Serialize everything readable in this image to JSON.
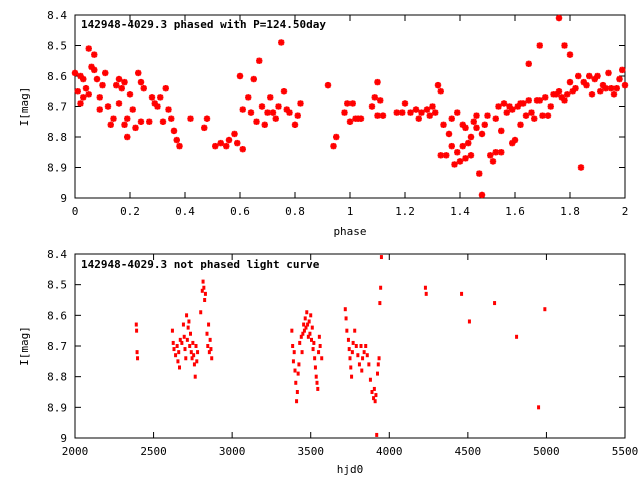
{
  "chart_data": [
    {
      "type": "scatter",
      "title": "142948-4029.3 phased with P=124.50day",
      "xlabel": "phase",
      "ylabel": "I[mag]",
      "xlim": [
        0,
        2
      ],
      "ylim": [
        8.4,
        9
      ],
      "y_inverted": true,
      "xticks": [
        "0",
        "0.2",
        "0.4",
        "0.6",
        "0.8",
        "1",
        "1.2",
        "1.4",
        "1.6",
        "1.8",
        "2"
      ],
      "xtick_values": [
        0,
        0.2,
        0.4,
        0.6,
        0.8,
        1.0,
        1.2,
        1.4,
        1.6,
        1.8,
        2.0
      ],
      "yticks": [
        "8.4",
        "8.5",
        "8.6",
        "8.7",
        "8.8",
        "8.9",
        "9"
      ],
      "ytick_values": [
        8.4,
        8.5,
        8.6,
        8.7,
        8.8,
        8.9,
        9.0
      ],
      "marker": "asterisk",
      "color": "#ff0000",
      "points": [
        [
          0.0,
          8.59
        ],
        [
          0.01,
          8.65
        ],
        [
          0.02,
          8.6
        ],
        [
          0.02,
          8.69
        ],
        [
          0.03,
          8.61
        ],
        [
          0.03,
          8.67
        ],
        [
          0.04,
          8.64
        ],
        [
          0.05,
          8.51
        ],
        [
          0.05,
          8.66
        ],
        [
          0.06,
          8.57
        ],
        [
          0.07,
          8.53
        ],
        [
          0.07,
          8.58
        ],
        [
          0.08,
          8.61
        ],
        [
          0.09,
          8.71
        ],
        [
          0.09,
          8.67
        ],
        [
          0.1,
          8.63
        ],
        [
          0.11,
          8.59
        ],
        [
          0.12,
          8.7
        ],
        [
          0.13,
          8.76
        ],
        [
          0.14,
          8.74
        ],
        [
          0.15,
          8.63
        ],
        [
          0.16,
          8.61
        ],
        [
          0.16,
          8.69
        ],
        [
          0.17,
          8.64
        ],
        [
          0.18,
          8.76
        ],
        [
          0.18,
          8.62
        ],
        [
          0.19,
          8.74
        ],
        [
          0.19,
          8.8
        ],
        [
          0.2,
          8.66
        ],
        [
          0.21,
          8.71
        ],
        [
          0.22,
          8.77
        ],
        [
          0.23,
          8.59
        ],
        [
          0.24,
          8.62
        ],
        [
          0.24,
          8.75
        ],
        [
          0.25,
          8.64
        ],
        [
          0.27,
          8.75
        ],
        [
          0.28,
          8.67
        ],
        [
          0.29,
          8.69
        ],
        [
          0.3,
          8.7
        ],
        [
          0.31,
          8.67
        ],
        [
          0.32,
          8.75
        ],
        [
          0.33,
          8.64
        ],
        [
          0.34,
          8.71
        ],
        [
          0.35,
          8.74
        ],
        [
          0.36,
          8.78
        ],
        [
          0.37,
          8.81
        ],
        [
          0.38,
          8.83
        ],
        [
          0.42,
          8.74
        ],
        [
          0.47,
          8.77
        ],
        [
          0.48,
          8.74
        ],
        [
          0.51,
          8.83
        ],
        [
          0.53,
          8.82
        ],
        [
          0.55,
          8.83
        ],
        [
          0.56,
          8.81
        ],
        [
          0.58,
          8.79
        ],
        [
          0.59,
          8.82
        ],
        [
          0.6,
          8.6
        ],
        [
          0.61,
          8.84
        ],
        [
          0.61,
          8.71
        ],
        [
          0.63,
          8.67
        ],
        [
          0.64,
          8.72
        ],
        [
          0.65,
          8.61
        ],
        [
          0.66,
          8.75
        ],
        [
          0.67,
          8.55
        ],
        [
          0.68,
          8.7
        ],
        [
          0.69,
          8.76
        ],
        [
          0.7,
          8.72
        ],
        [
          0.71,
          8.67
        ],
        [
          0.72,
          8.72
        ],
        [
          0.73,
          8.74
        ],
        [
          0.74,
          8.7
        ],
        [
          0.75,
          8.49
        ],
        [
          0.76,
          8.65
        ],
        [
          0.77,
          8.71
        ],
        [
          0.78,
          8.72
        ],
        [
          0.8,
          8.76
        ],
        [
          0.81,
          8.73
        ],
        [
          0.82,
          8.69
        ],
        [
          0.92,
          8.63
        ],
        [
          0.94,
          8.83
        ],
        [
          0.95,
          8.8
        ],
        [
          0.98,
          8.72
        ],
        [
          0.99,
          8.69
        ],
        [
          1.0,
          8.75
        ],
        [
          1.01,
          8.69
        ],
        [
          1.02,
          8.74
        ],
        [
          1.03,
          8.74
        ],
        [
          1.04,
          8.74
        ],
        [
          1.08,
          8.7
        ],
        [
          1.09,
          8.67
        ],
        [
          1.1,
          8.73
        ],
        [
          1.1,
          8.62
        ],
        [
          1.11,
          8.68
        ],
        [
          1.12,
          8.73
        ],
        [
          1.17,
          8.72
        ],
        [
          1.19,
          8.72
        ],
        [
          1.2,
          8.69
        ],
        [
          1.22,
          8.72
        ],
        [
          1.24,
          8.71
        ],
        [
          1.25,
          8.74
        ],
        [
          1.26,
          8.72
        ],
        [
          1.28,
          8.71
        ],
        [
          1.29,
          8.73
        ],
        [
          1.3,
          8.7
        ],
        [
          1.31,
          8.72
        ],
        [
          1.32,
          8.63
        ],
        [
          1.33,
          8.65
        ],
        [
          1.33,
          8.86
        ],
        [
          1.34,
          8.76
        ],
        [
          1.35,
          8.86
        ],
        [
          1.36,
          8.79
        ],
        [
          1.37,
          8.74
        ],
        [
          1.37,
          8.83
        ],
        [
          1.38,
          8.89
        ],
        [
          1.39,
          8.72
        ],
        [
          1.39,
          8.85
        ],
        [
          1.4,
          8.88
        ],
        [
          1.41,
          8.83
        ],
        [
          1.41,
          8.76
        ],
        [
          1.42,
          8.77
        ],
        [
          1.42,
          8.87
        ],
        [
          1.43,
          8.82
        ],
        [
          1.44,
          8.8
        ],
        [
          1.44,
          8.86
        ],
        [
          1.45,
          8.75
        ],
        [
          1.46,
          8.73
        ],
        [
          1.46,
          8.77
        ],
        [
          1.47,
          8.92
        ],
        [
          1.48,
          8.99
        ],
        [
          1.48,
          8.79
        ],
        [
          1.49,
          8.76
        ],
        [
          1.5,
          8.73
        ],
        [
          1.51,
          8.86
        ],
        [
          1.52,
          8.88
        ],
        [
          1.53,
          8.85
        ],
        [
          1.53,
          8.74
        ],
        [
          1.54,
          8.7
        ],
        [
          1.55,
          8.85
        ],
        [
          1.55,
          8.78
        ],
        [
          1.56,
          8.69
        ],
        [
          1.57,
          8.72
        ],
        [
          1.58,
          8.7
        ],
        [
          1.59,
          8.82
        ],
        [
          1.59,
          8.71
        ],
        [
          1.6,
          8.81
        ],
        [
          1.61,
          8.7
        ],
        [
          1.62,
          8.76
        ],
        [
          1.62,
          8.69
        ],
        [
          1.63,
          8.69
        ],
        [
          1.64,
          8.73
        ],
        [
          1.65,
          8.56
        ],
        [
          1.65,
          8.68
        ],
        [
          1.66,
          8.72
        ],
        [
          1.67,
          8.74
        ],
        [
          1.68,
          8.68
        ],
        [
          1.69,
          8.5
        ],
        [
          1.69,
          8.68
        ],
        [
          1.7,
          8.73
        ],
        [
          1.71,
          8.67
        ],
        [
          1.72,
          8.73
        ],
        [
          1.73,
          8.7
        ],
        [
          1.74,
          8.66
        ],
        [
          1.75,
          8.66
        ],
        [
          1.76,
          8.41
        ],
        [
          1.76,
          8.65
        ],
        [
          1.77,
          8.67
        ],
        [
          1.78,
          8.5
        ],
        [
          1.78,
          8.68
        ],
        [
          1.79,
          8.66
        ],
        [
          1.8,
          8.53
        ],
        [
          1.8,
          8.62
        ],
        [
          1.81,
          8.65
        ],
        [
          1.82,
          8.64
        ],
        [
          1.83,
          8.6
        ],
        [
          1.84,
          8.9
        ],
        [
          1.85,
          8.62
        ],
        [
          1.86,
          8.63
        ],
        [
          1.87,
          8.6
        ],
        [
          1.88,
          8.66
        ],
        [
          1.89,
          8.61
        ],
        [
          1.9,
          8.6
        ],
        [
          1.91,
          8.65
        ],
        [
          1.92,
          8.63
        ],
        [
          1.93,
          8.64
        ],
        [
          1.94,
          8.59
        ],
        [
          1.95,
          8.64
        ],
        [
          1.96,
          8.66
        ],
        [
          1.97,
          8.64
        ],
        [
          1.98,
          8.61
        ],
        [
          1.99,
          8.58
        ],
        [
          2.0,
          8.63
        ]
      ]
    },
    {
      "type": "scatter",
      "title": "142948-4029.3 not phased light curve",
      "xlabel": "hjd0",
      "ylabel": "I[mag]",
      "xlim": [
        2000,
        5500
      ],
      "ylim": [
        8.4,
        9
      ],
      "y_inverted": true,
      "xticks": [
        "2000",
        "2500",
        "3000",
        "3500",
        "4000",
        "4500",
        "5000",
        "5500"
      ],
      "xtick_values": [
        2000,
        2500,
        3000,
        3500,
        4000,
        4500,
        5000,
        5500
      ],
      "yticks": [
        "8.4",
        "8.5",
        "8.6",
        "8.7",
        "8.8",
        "8.9",
        "9"
      ],
      "ytick_values": [
        8.4,
        8.5,
        8.6,
        8.7,
        8.8,
        8.9,
        9.0
      ],
      "marker": "small-dot",
      "color": "#ff0000",
      "points": [
        [
          2390,
          8.63
        ],
        [
          2392,
          8.65
        ],
        [
          2395,
          8.72
        ],
        [
          2398,
          8.74
        ],
        [
          2620,
          8.65
        ],
        [
          2625,
          8.69
        ],
        [
          2630,
          8.71
        ],
        [
          2640,
          8.73
        ],
        [
          2650,
          8.7
        ],
        [
          2655,
          8.75
        ],
        [
          2660,
          8.72
        ],
        [
          2665,
          8.77
        ],
        [
          2670,
          8.68
        ],
        [
          2680,
          8.69
        ],
        [
          2690,
          8.63
        ],
        [
          2695,
          8.67
        ],
        [
          2700,
          8.71
        ],
        [
          2705,
          8.74
        ],
        [
          2710,
          8.6
        ],
        [
          2715,
          8.68
        ],
        [
          2720,
          8.64
        ],
        [
          2725,
          8.62
        ],
        [
          2730,
          8.7
        ],
        [
          2735,
          8.66
        ],
        [
          2740,
          8.72
        ],
        [
          2745,
          8.74
        ],
        [
          2750,
          8.69
        ],
        [
          2755,
          8.73
        ],
        [
          2760,
          8.76
        ],
        [
          2765,
          8.8
        ],
        [
          2770,
          8.7
        ],
        [
          2775,
          8.75
        ],
        [
          2780,
          8.72
        ],
        [
          2800,
          8.59
        ],
        [
          2810,
          8.52
        ],
        [
          2815,
          8.49
        ],
        [
          2820,
          8.51
        ],
        [
          2825,
          8.55
        ],
        [
          2830,
          8.53
        ],
        [
          2840,
          8.66
        ],
        [
          2845,
          8.7
        ],
        [
          2850,
          8.63
        ],
        [
          2855,
          8.72
        ],
        [
          2860,
          8.68
        ],
        [
          2865,
          8.71
        ],
        [
          2870,
          8.74
        ],
        [
          3380,
          8.65
        ],
        [
          3385,
          8.7
        ],
        [
          3390,
          8.75
        ],
        [
          3395,
          8.72
        ],
        [
          3400,
          8.78
        ],
        [
          3405,
          8.82
        ],
        [
          3410,
          8.88
        ],
        [
          3415,
          8.85
        ],
        [
          3420,
          8.79
        ],
        [
          3425,
          8.76
        ],
        [
          3430,
          8.69
        ],
        [
          3440,
          8.67
        ],
        [
          3445,
          8.72
        ],
        [
          3450,
          8.66
        ],
        [
          3455,
          8.63
        ],
        [
          3460,
          8.65
        ],
        [
          3465,
          8.61
        ],
        [
          3470,
          8.64
        ],
        [
          3475,
          8.59
        ],
        [
          3480,
          8.63
        ],
        [
          3485,
          8.67
        ],
        [
          3490,
          8.62
        ],
        [
          3495,
          8.66
        ],
        [
          3500,
          8.6
        ],
        [
          3505,
          8.68
        ],
        [
          3510,
          8.64
        ],
        [
          3515,
          8.71
        ],
        [
          3520,
          8.69
        ],
        [
          3525,
          8.74
        ],
        [
          3530,
          8.77
        ],
        [
          3535,
          8.8
        ],
        [
          3540,
          8.82
        ],
        [
          3545,
          8.84
        ],
        [
          3550,
          8.72
        ],
        [
          3555,
          8.67
        ],
        [
          3560,
          8.7
        ],
        [
          3570,
          8.74
        ],
        [
          3720,
          8.58
        ],
        [
          3725,
          8.61
        ],
        [
          3730,
          8.65
        ],
        [
          3740,
          8.68
        ],
        [
          3745,
          8.71
        ],
        [
          3750,
          8.74
        ],
        [
          3755,
          8.77
        ],
        [
          3760,
          8.8
        ],
        [
          3765,
          8.72
        ],
        [
          3770,
          8.69
        ],
        [
          3780,
          8.65
        ],
        [
          3790,
          8.7
        ],
        [
          3800,
          8.73
        ],
        [
          3810,
          8.76
        ],
        [
          3820,
          8.7
        ],
        [
          3825,
          8.78
        ],
        [
          3830,
          8.74
        ],
        [
          3840,
          8.72
        ],
        [
          3850,
          8.7
        ],
        [
          3860,
          8.73
        ],
        [
          3870,
          8.76
        ],
        [
          3880,
          8.81
        ],
        [
          3890,
          8.85
        ],
        [
          3900,
          8.87
        ],
        [
          3905,
          8.84
        ],
        [
          3910,
          8.88
        ],
        [
          3915,
          8.86
        ],
        [
          3920,
          8.99
        ],
        [
          3925,
          8.79
        ],
        [
          3930,
          8.76
        ],
        [
          3935,
          8.74
        ],
        [
          3940,
          8.56
        ],
        [
          3945,
          8.51
        ],
        [
          3950,
          8.41
        ],
        [
          4230,
          8.51
        ],
        [
          4235,
          8.53
        ],
        [
          4460,
          8.53
        ],
        [
          4510,
          8.62
        ],
        [
          4670,
          8.56
        ],
        [
          4810,
          8.67
        ],
        [
          4950,
          8.9
        ],
        [
          4990,
          8.58
        ]
      ]
    }
  ]
}
